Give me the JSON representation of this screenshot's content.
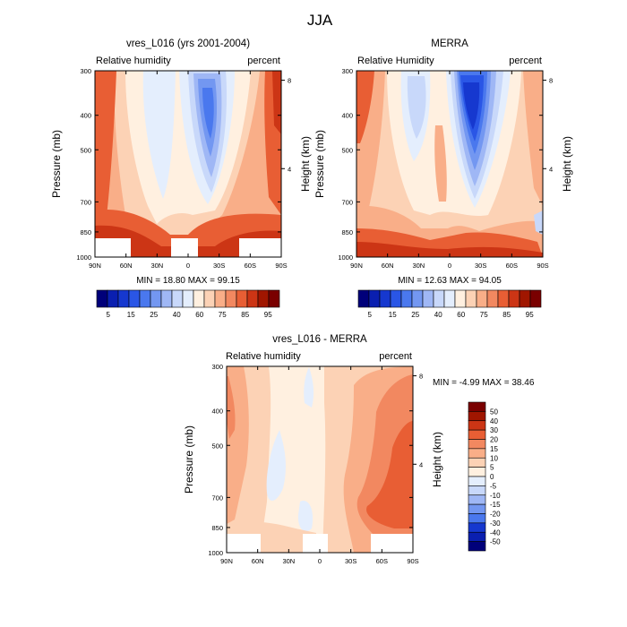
{
  "figure_title": "JJA",
  "chart_data": [
    {
      "type": "heatmap",
      "title": "vres_L016 (yrs 2001-2004)",
      "left_label": "Relative humidity",
      "right_label": "percent",
      "ylabel": "Pressure (mb)",
      "y2label": "Height (km)",
      "x_ticks": [
        "90N",
        "60N",
        "30N",
        "0",
        "30S",
        "60S",
        "90S"
      ],
      "y_ticks": [
        300,
        400,
        500,
        700,
        850,
        1000
      ],
      "height_ticks": [
        8,
        4
      ],
      "xlim": [
        90,
        -90
      ],
      "ylim": [
        1000,
        300
      ],
      "stats": "MIN =  18.80  MAX =  99.15",
      "min": 18.8,
      "max": 99.15,
      "colorbar": {
        "labels": [
          "5",
          "15",
          "25",
          "40",
          "60",
          "75",
          "85",
          "95"
        ],
        "levels": [
          5,
          10,
          15,
          20,
          25,
          30,
          40,
          50,
          60,
          70,
          75,
          80,
          85,
          90,
          95
        ],
        "colors": [
          "#00007a",
          "#0a1fb0",
          "#1638cf",
          "#2a56e6",
          "#4a78ee",
          "#7397f1",
          "#9fb7f5",
          "#c8d8fa",
          "#e4eefd",
          "#fff0e0",
          "#fcd2b5",
          "#f9ae88",
          "#f28860",
          "#e85e34",
          "#cc3515",
          "#a01600",
          "#7a0000"
        ]
      }
    },
    {
      "type": "heatmap",
      "title": "MERRA",
      "left_label": "Relative Humidity",
      "right_label": "percent",
      "ylabel": "Pressure (mb)",
      "y2label": "Height (km)",
      "x_ticks": [
        "90N",
        "60N",
        "30N",
        "0",
        "30S",
        "60S",
        "90S"
      ],
      "y_ticks": [
        300,
        400,
        500,
        700,
        850,
        1000
      ],
      "height_ticks": [
        8,
        4
      ],
      "xlim": [
        90,
        -90
      ],
      "ylim": [
        1000,
        300
      ],
      "stats": "MIN =  12.63  MAX =  94.05",
      "min": 12.63,
      "max": 94.05,
      "colorbar": {
        "labels": [
          "5",
          "15",
          "25",
          "40",
          "60",
          "75",
          "85",
          "95"
        ]
      }
    },
    {
      "type": "heatmap",
      "title": "vres_L016 - MERRA",
      "left_label": "Relative humidity",
      "right_label": "percent",
      "ylabel": "Pressure (mb)",
      "y2label": "Height (km)",
      "x_ticks": [
        "90N",
        "60N",
        "30N",
        "0",
        "30S",
        "60S",
        "90S"
      ],
      "y_ticks": [
        300,
        400,
        500,
        700,
        850,
        1000
      ],
      "height_ticks": [
        8,
        4
      ],
      "xlim": [
        90,
        -90
      ],
      "ylim": [
        1000,
        300
      ],
      "stats": "MIN =  -4.99  MAX =  38.46",
      "min": -4.99,
      "max": 38.46,
      "colorbar": {
        "labels": [
          "50",
          "40",
          "30",
          "20",
          "15",
          "10",
          "5",
          "0",
          "-5",
          "-10",
          "-15",
          "-20",
          "-30",
          "-40",
          "-50"
        ],
        "colors": [
          "#7a0000",
          "#a01600",
          "#cc3515",
          "#e85e34",
          "#f28860",
          "#f9ae88",
          "#fcd2b5",
          "#fff0e0",
          "#e4eefd",
          "#c8d8fa",
          "#9fb7f5",
          "#7397f1",
          "#4a78ee",
          "#1638cf",
          "#0a1fb0",
          "#00007a"
        ]
      }
    }
  ]
}
